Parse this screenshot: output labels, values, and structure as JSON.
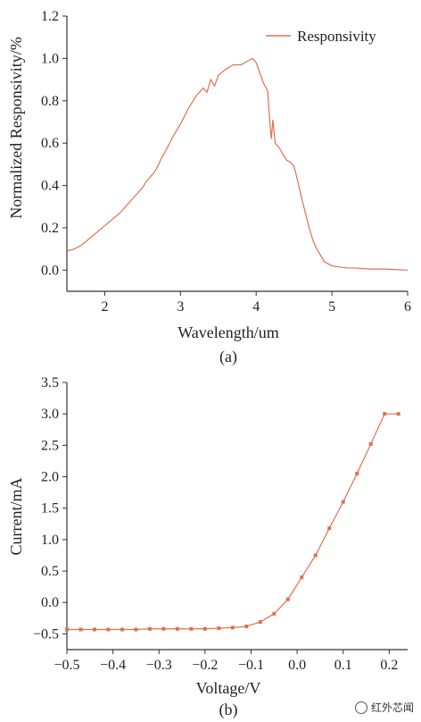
{
  "chart_data": [
    {
      "type": "line",
      "panel_label": "(a)",
      "xlabel": "Wavelength/um",
      "ylabel": "Normalized Responsivity/%",
      "xlim": [
        1.5,
        6
      ],
      "ylim": [
        -0.1,
        1.2
      ],
      "xticks": [
        2,
        3,
        4,
        5,
        6
      ],
      "yticks": [
        0.0,
        0.2,
        0.4,
        0.6,
        0.8,
        1.0,
        1.2
      ],
      "ytick_labels": [
        "0.0",
        "0.2",
        "0.4",
        "0.6",
        "0.8",
        "1.0",
        "1.2"
      ],
      "legend_position": "top-right",
      "grid": false,
      "series": [
        {
          "name": "Responsivity",
          "color": "#E07050",
          "x": [
            1.5,
            1.6,
            1.7,
            1.8,
            1.9,
            2.0,
            2.1,
            2.2,
            2.3,
            2.4,
            2.5,
            2.55,
            2.6,
            2.65,
            2.7,
            2.75,
            2.8,
            2.9,
            3.0,
            3.1,
            3.2,
            3.3,
            3.35,
            3.4,
            3.45,
            3.5,
            3.6,
            3.7,
            3.8,
            3.9,
            3.95,
            4.0,
            4.05,
            4.1,
            4.15,
            4.18,
            4.2,
            4.22,
            4.25,
            4.3,
            4.35,
            4.4,
            4.45,
            4.5,
            4.55,
            4.6,
            4.65,
            4.7,
            4.75,
            4.8,
            4.85,
            4.9,
            5.0,
            5.1,
            5.2,
            5.3,
            5.5,
            5.7,
            6.0
          ],
          "y": [
            0.09,
            0.1,
            0.12,
            0.15,
            0.18,
            0.21,
            0.24,
            0.27,
            0.31,
            0.35,
            0.39,
            0.42,
            0.44,
            0.46,
            0.49,
            0.53,
            0.56,
            0.63,
            0.69,
            0.76,
            0.82,
            0.86,
            0.84,
            0.9,
            0.87,
            0.92,
            0.95,
            0.97,
            0.97,
            0.99,
            1.0,
            0.98,
            0.93,
            0.88,
            0.85,
            0.7,
            0.62,
            0.71,
            0.6,
            0.58,
            0.55,
            0.52,
            0.51,
            0.49,
            0.42,
            0.34,
            0.27,
            0.2,
            0.14,
            0.1,
            0.07,
            0.04,
            0.02,
            0.015,
            0.01,
            0.01,
            0.005,
            0.005,
            0.0
          ]
        }
      ]
    },
    {
      "type": "line",
      "panel_label": "(b)",
      "xlabel": "Voltage/V",
      "ylabel": "Current/mA",
      "xlim": [
        -0.5,
        0.24
      ],
      "ylim": [
        -0.75,
        3.5
      ],
      "xticks": [
        -0.5,
        -0.4,
        -0.3,
        -0.2,
        -0.1,
        0.0,
        0.1,
        0.2
      ],
      "xtick_labels": [
        "−0.5",
        "−0.4",
        "−0.3",
        "−0.2",
        "−0.1",
        "0.0",
        "0.1",
        "0.2"
      ],
      "yticks": [
        -0.5,
        0.0,
        0.5,
        1.0,
        1.5,
        2.0,
        2.5,
        3.0,
        3.5
      ],
      "ytick_labels": [
        "−0.5",
        "0.0",
        "0.5",
        "1.0",
        "1.5",
        "2.0",
        "2.5",
        "3.0",
        "3.5"
      ],
      "grid": false,
      "series": [
        {
          "color": "#E07050",
          "marker": "square",
          "x": [
            -0.5,
            -0.47,
            -0.44,
            -0.41,
            -0.38,
            -0.35,
            -0.32,
            -0.29,
            -0.26,
            -0.23,
            -0.2,
            -0.17,
            -0.14,
            -0.11,
            -0.08,
            -0.05,
            -0.02,
            0.01,
            0.04,
            0.07,
            0.1,
            0.13,
            0.16,
            0.19,
            0.22
          ],
          "y": [
            -0.43,
            -0.43,
            -0.43,
            -0.43,
            -0.43,
            -0.43,
            -0.42,
            -0.42,
            -0.42,
            -0.42,
            -0.42,
            -0.41,
            -0.4,
            -0.38,
            -0.31,
            -0.18,
            0.05,
            0.4,
            0.75,
            1.18,
            1.6,
            2.05,
            2.52,
            3.0,
            3.0
          ]
        }
      ]
    }
  ],
  "watermark": {
    "text": "红外芯闻"
  }
}
